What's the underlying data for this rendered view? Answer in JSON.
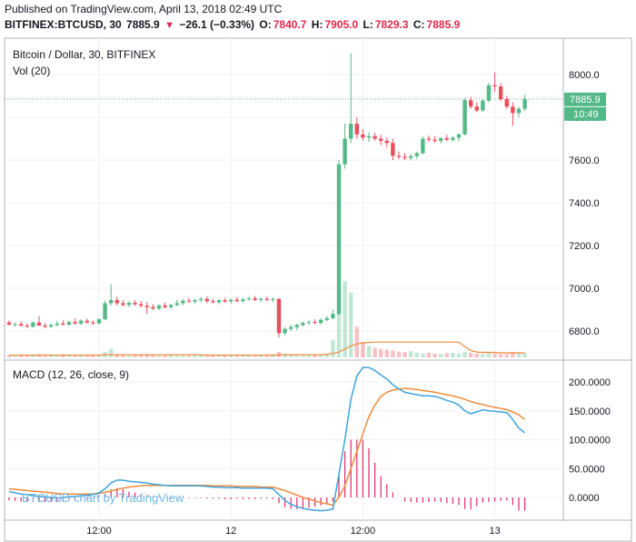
{
  "header": {
    "published": "Published on TradingView.com, April 13, 2018 02:49 UTC",
    "symbol": "BITFINEX:BTCUSD, 30",
    "last": "7885.9",
    "change_arrow": "▼",
    "change": "−26.1 (−0.33%)",
    "o_label": "O:",
    "o_value": "7840.7",
    "h_label": "H:",
    "h_value": "7905.0",
    "l_label": "L:",
    "l_value": "7829.3",
    "c_label": "C:",
    "c_value": "7885.9"
  },
  "price_pane": {
    "legend_title": "Bitcoin / Dollar, 30, BITFINEX",
    "legend_vol": "Vol (20)",
    "price_badge": "7885.9",
    "time_badge": "10:49"
  },
  "macd_pane": {
    "legend": "MACD (12, 26, close, 9)",
    "watermark": "BTCUSD chart by TradingView"
  },
  "colors": {
    "up": "#53b987",
    "down": "#eb4d5c",
    "macd": "#3fa3e0",
    "signal": "#f08b3b",
    "hist": "#e0296b",
    "vol_ma": "#f08b3b",
    "last_line": "#53b987",
    "grid": "#eef0f3"
  },
  "chart_data": [
    {
      "type": "candlestick",
      "title": "Bitcoin / Dollar, 30, BITFINEX",
      "ylim": [
        6700,
        8100
      ],
      "y_ticks": [
        "6800.0",
        "7000.0",
        "7200.0",
        "7400.0",
        "7600.0",
        "7800.0",
        "8000.0"
      ],
      "x_ticks": [
        "12:00",
        "12",
        "12:00",
        "13"
      ],
      "x_tick_index": [
        15,
        37,
        59,
        81
      ],
      "last_price": 7885.9,
      "ohlc": [
        [
          6840,
          6850,
          6825,
          6830
        ],
        [
          6830,
          6840,
          6820,
          6832
        ],
        [
          6832,
          6845,
          6822,
          6825
        ],
        [
          6825,
          6835,
          6815,
          6820
        ],
        [
          6820,
          6845,
          6815,
          6840
        ],
        [
          6840,
          6870,
          6830,
          6825
        ],
        [
          6825,
          6838,
          6812,
          6820
        ],
        [
          6820,
          6835,
          6815,
          6828
        ],
        [
          6828,
          6848,
          6822,
          6835
        ],
        [
          6835,
          6850,
          6825,
          6830
        ],
        [
          6830,
          6848,
          6824,
          6842
        ],
        [
          6842,
          6858,
          6830,
          6835
        ],
        [
          6835,
          6855,
          6828,
          6848
        ],
        [
          6848,
          6858,
          6835,
          6840
        ],
        [
          6840,
          6850,
          6828,
          6836
        ],
        [
          6836,
          6860,
          6830,
          6855
        ],
        [
          6855,
          6940,
          6850,
          6930
        ],
        [
          6930,
          7020,
          6920,
          6945
        ],
        [
          6945,
          6960,
          6920,
          6930
        ],
        [
          6930,
          6945,
          6915,
          6922
        ],
        [
          6922,
          6940,
          6912,
          6932
        ],
        [
          6932,
          6945,
          6918,
          6925
        ],
        [
          6925,
          6940,
          6910,
          6918
        ],
        [
          6918,
          6935,
          6880,
          6912
        ],
        [
          6912,
          6925,
          6898,
          6905
        ],
        [
          6905,
          6925,
          6898,
          6920
        ],
        [
          6920,
          6932,
          6905,
          6912
        ],
        [
          6912,
          6928,
          6905,
          6922
        ],
        [
          6922,
          6945,
          6915,
          6930
        ],
        [
          6930,
          6950,
          6920,
          6942
        ],
        [
          6942,
          6955,
          6932,
          6938
        ],
        [
          6938,
          6952,
          6928,
          6945
        ],
        [
          6945,
          6960,
          6935,
          6950
        ],
        [
          6950,
          6962,
          6930,
          6940
        ],
        [
          6940,
          6952,
          6928,
          6935
        ],
        [
          6935,
          6950,
          6925,
          6944
        ],
        [
          6944,
          6955,
          6932,
          6938
        ],
        [
          6938,
          6952,
          6928,
          6946
        ],
        [
          6946,
          6958,
          6935,
          6940
        ],
        [
          6940,
          6955,
          6930,
          6948
        ],
        [
          6948,
          6960,
          6940,
          6952
        ],
        [
          6952,
          6965,
          6940,
          6945
        ],
        [
          6945,
          6958,
          6935,
          6950
        ],
        [
          6950,
          6962,
          6938,
          6946
        ],
        [
          6946,
          6958,
          6935,
          6950
        ],
        [
          6950,
          6955,
          6770,
          6790
        ],
        [
          6790,
          6820,
          6780,
          6810
        ],
        [
          6810,
          6830,
          6800,
          6818
        ],
        [
          6818,
          6835,
          6805,
          6828
        ],
        [
          6828,
          6845,
          6820,
          6838
        ],
        [
          6838,
          6850,
          6828,
          6842
        ],
        [
          6842,
          6855,
          6832,
          6838
        ],
        [
          6838,
          6860,
          6830,
          6852
        ],
        [
          6852,
          6870,
          6845,
          6860
        ],
        [
          6860,
          6900,
          6855,
          6880
        ],
        [
          6880,
          7600,
          6875,
          7580
        ],
        [
          7580,
          7770,
          7560,
          7700
        ],
        [
          7700,
          8100,
          7680,
          7770
        ],
        [
          7770,
          7800,
          7700,
          7720
        ],
        [
          7720,
          7745,
          7690,
          7705
        ],
        [
          7705,
          7730,
          7685,
          7712
        ],
        [
          7712,
          7728,
          7690,
          7700
        ],
        [
          7700,
          7718,
          7670,
          7690
        ],
        [
          7690,
          7705,
          7660,
          7680
        ],
        [
          7680,
          7700,
          7600,
          7620
        ],
        [
          7620,
          7640,
          7605,
          7615
        ],
        [
          7615,
          7632,
          7600,
          7610
        ],
        [
          7610,
          7628,
          7598,
          7618
        ],
        [
          7618,
          7640,
          7605,
          7632
        ],
        [
          7632,
          7710,
          7625,
          7700
        ],
        [
          7700,
          7715,
          7685,
          7695
        ],
        [
          7695,
          7712,
          7680,
          7690
        ],
        [
          7690,
          7708,
          7678,
          7702
        ],
        [
          7702,
          7718,
          7688,
          7695
        ],
        [
          7695,
          7712,
          7685,
          7705
        ],
        [
          7705,
          7725,
          7690,
          7720
        ],
        [
          7720,
          7890,
          7715,
          7880
        ],
        [
          7880,
          7895,
          7840,
          7850
        ],
        [
          7850,
          7870,
          7825,
          7832
        ],
        [
          7832,
          7885,
          7825,
          7878
        ],
        [
          7878,
          7960,
          7870,
          7950
        ],
        [
          7950,
          8010,
          7920,
          7945
        ],
        [
          7945,
          7960,
          7875,
          7885
        ],
        [
          7885,
          7900,
          7840,
          7850
        ],
        [
          7850,
          7870,
          7760,
          7820
        ],
        [
          7820,
          7850,
          7800,
          7840
        ],
        [
          7840,
          7905,
          7829,
          7886
        ]
      ],
      "volume": [
        5,
        4,
        6,
        4,
        5,
        9,
        4,
        5,
        4,
        6,
        5,
        4,
        5,
        4,
        6,
        7,
        14,
        22,
        6,
        5,
        4,
        5,
        6,
        7,
        5,
        4,
        5,
        6,
        4,
        5,
        4,
        5,
        6,
        4,
        5,
        4,
        6,
        5,
        4,
        5,
        6,
        4,
        5,
        4,
        8,
        14,
        10,
        6,
        5,
        4,
        5,
        6,
        5,
        9,
        45,
        120,
        200,
        170,
        80,
        40,
        30,
        25,
        22,
        20,
        18,
        15,
        14,
        16,
        12,
        10,
        12,
        10,
        9,
        11,
        12,
        10,
        14,
        12,
        10,
        9,
        12,
        10,
        9,
        8,
        14,
        11,
        10
      ],
      "volume_ma": [
        6,
        6,
        6,
        6,
        6,
        6,
        6,
        6,
        6,
        6,
        6,
        6,
        6,
        6,
        6,
        6,
        7,
        7,
        7,
        7,
        7,
        7,
        7,
        7,
        7,
        7,
        7,
        7,
        7,
        7,
        7,
        7,
        7,
        6,
        6,
        6,
        6,
        6,
        6,
        6,
        6,
        6,
        6,
        6,
        6,
        7,
        7,
        7,
        7,
        7,
        7,
        7,
        7,
        8,
        10,
        14,
        22,
        30,
        35,
        38,
        39,
        40,
        40,
        40,
        40,
        40,
        40,
        40,
        40,
        40,
        40,
        40,
        40,
        40,
        40,
        40,
        28,
        18,
        14,
        13,
        13,
        13,
        12,
        12,
        12,
        12,
        12
      ]
    },
    {
      "type": "line",
      "title": "MACD (12, 26, close, 9)",
      "ylim": [
        -40,
        245
      ],
      "y_ticks": [
        "0.0000",
        "50.0000",
        "100.0000",
        "150.0000",
        "200.0000"
      ],
      "series": [
        {
          "name": "MACD",
          "values": [
            10,
            8,
            6,
            5,
            3,
            2,
            1,
            0,
            -1,
            0,
            1,
            2,
            3,
            4,
            5,
            8,
            15,
            25,
            30,
            30,
            28,
            27,
            26,
            25,
            23,
            22,
            21,
            20,
            20,
            20,
            20,
            20,
            20,
            19,
            18,
            18,
            17,
            17,
            17,
            16,
            16,
            16,
            16,
            16,
            15,
            5,
            -5,
            -12,
            -16,
            -19,
            -21,
            -22,
            -23,
            -22,
            -20,
            40,
            100,
            170,
            210,
            225,
            225,
            220,
            212,
            205,
            195,
            188,
            182,
            180,
            178,
            176,
            176,
            175,
            172,
            168,
            165,
            160,
            150,
            145,
            148,
            152,
            150,
            149,
            148,
            147,
            135,
            120,
            112
          ]
        },
        {
          "name": "Signal",
          "values": [
            15,
            14,
            13,
            12,
            11,
            10,
            9,
            8,
            7,
            6,
            6,
            6,
            6,
            6,
            6,
            7,
            9,
            11,
            14,
            16,
            18,
            19,
            20,
            21,
            21,
            21,
            21,
            21,
            21,
            21,
            21,
            21,
            21,
            21,
            20,
            20,
            20,
            20,
            19,
            19,
            19,
            19,
            18,
            18,
            18,
            15,
            12,
            8,
            4,
            0,
            -3,
            -6,
            -9,
            -11,
            -13,
            0,
            20,
            50,
            80,
            110,
            140,
            160,
            175,
            182,
            186,
            188,
            189,
            188,
            187,
            185,
            184,
            182,
            180,
            178,
            176,
            173,
            170,
            166,
            163,
            161,
            158,
            156,
            154,
            152,
            148,
            143,
            135
          ]
        },
        {
          "name": "Histogram",
          "values": [
            -5,
            -6,
            -7,
            -7,
            -8,
            -8,
            -8,
            -8,
            -8,
            -6,
            -5,
            -4,
            -3,
            -2,
            -1,
            1,
            6,
            14,
            16,
            14,
            10,
            8,
            6,
            4,
            2,
            1,
            0,
            -1,
            -1,
            -1,
            -1,
            -1,
            -1,
            -2,
            -2,
            -2,
            -3,
            -3,
            -2,
            -3,
            -3,
            -3,
            -2,
            -2,
            -3,
            -10,
            -17,
            -20,
            -20,
            -19,
            -18,
            -16,
            -14,
            -11,
            -7,
            40,
            80,
            100,
            100,
            100,
            85,
            60,
            37,
            23,
            9,
            0,
            -7,
            -8,
            -9,
            -9,
            -8,
            -7,
            -8,
            -10,
            -11,
            -13,
            -20,
            -21,
            -15,
            -9,
            -8,
            -7,
            -6,
            -5,
            -13,
            -23,
            -23
          ]
        }
      ]
    }
  ]
}
